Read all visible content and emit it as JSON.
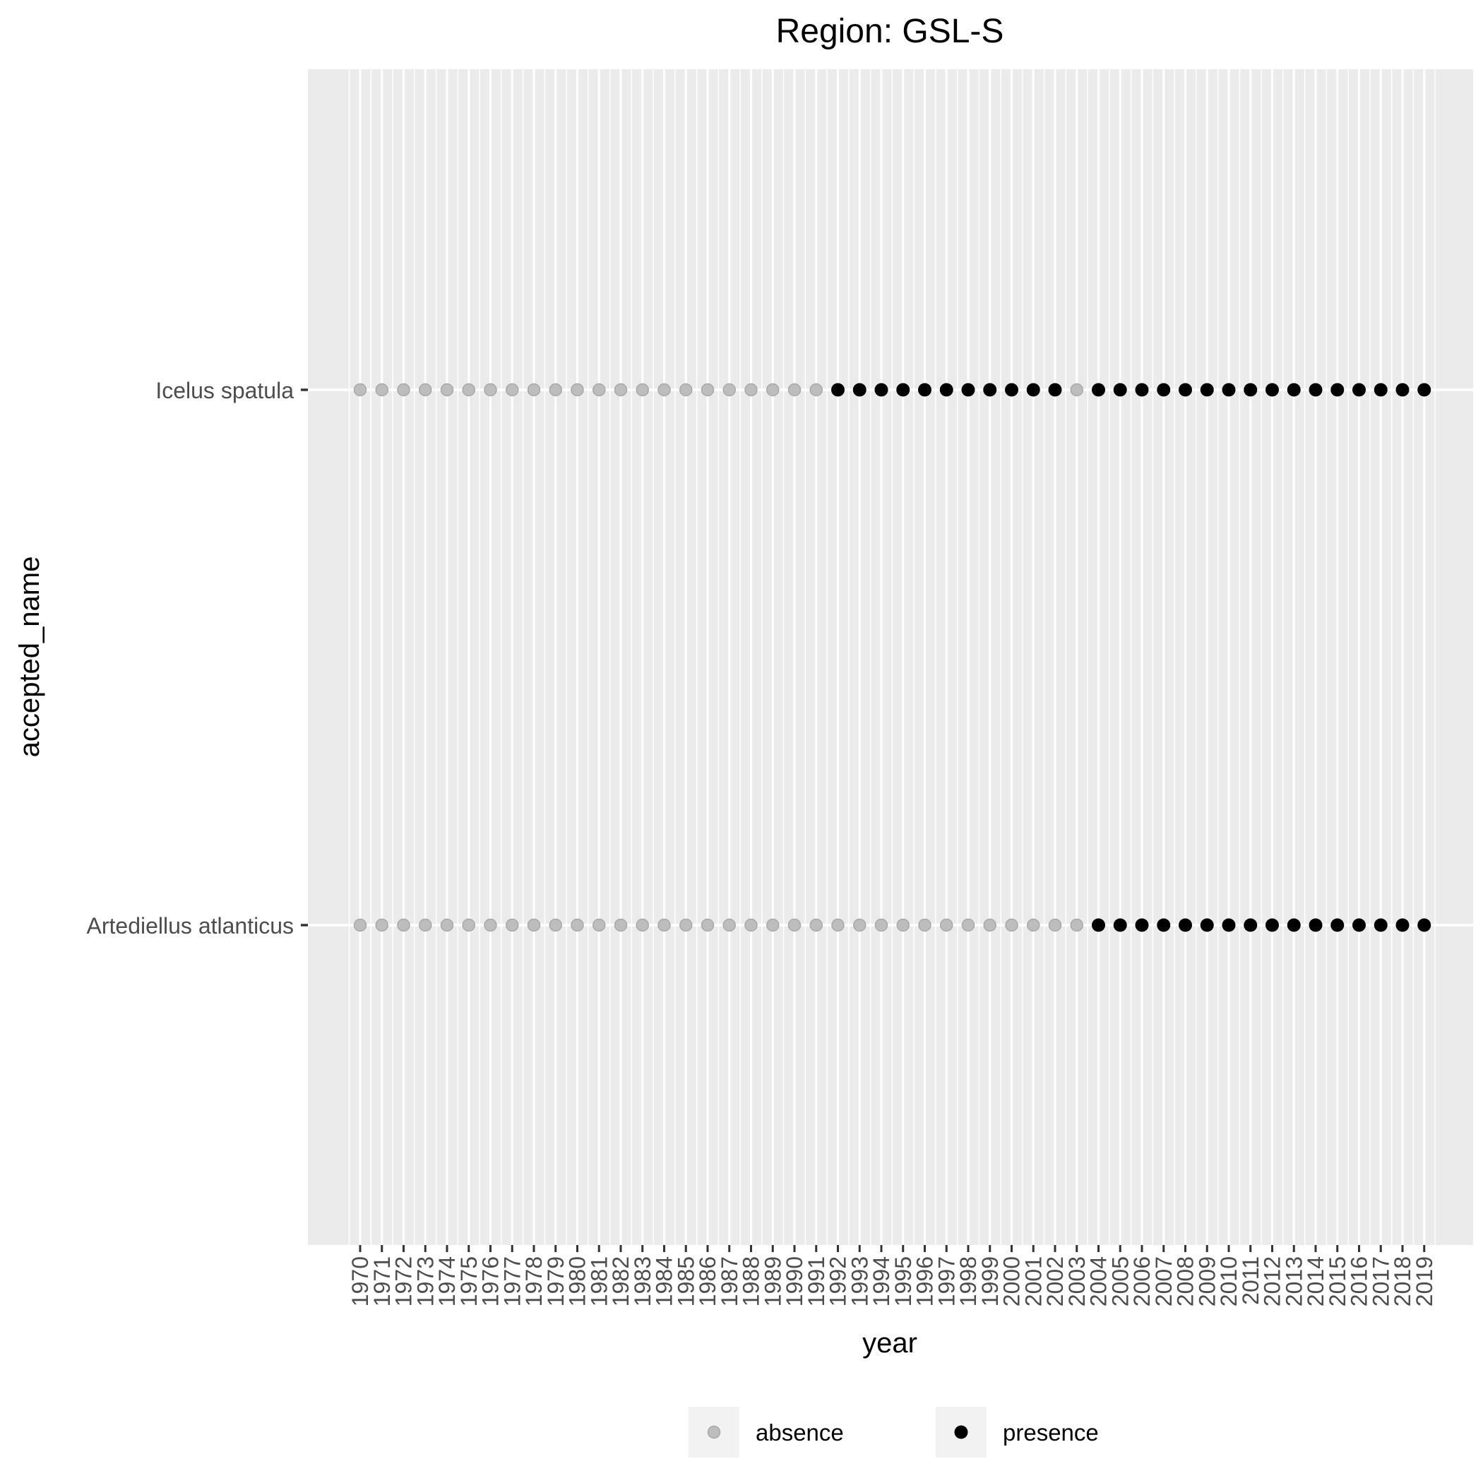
{
  "chart_data": {
    "type": "scatter",
    "title": "Region: GSL-S",
    "xlabel": "year",
    "ylabel": "accepted_name",
    "x": [
      1970,
      1971,
      1972,
      1973,
      1974,
      1975,
      1976,
      1977,
      1978,
      1979,
      1980,
      1981,
      1982,
      1983,
      1984,
      1985,
      1986,
      1987,
      1988,
      1989,
      1990,
      1991,
      1992,
      1993,
      1994,
      1995,
      1996,
      1997,
      1998,
      1999,
      2000,
      2001,
      2002,
      2003,
      2004,
      2005,
      2006,
      2007,
      2008,
      2009,
      2010,
      2011,
      2012,
      2013,
      2014,
      2015,
      2016,
      2017,
      2018,
      2019
    ],
    "categories": [
      "Artediellus atlanticus",
      "Icelus spatula"
    ],
    "grid": true,
    "legend_position": "bottom",
    "legend": [
      {
        "label": "absence",
        "color": "#bdbdbd"
      },
      {
        "label": "presence",
        "color": "#000000"
      }
    ],
    "series": [
      {
        "name": "Icelus spatula",
        "status": [
          "absence",
          "absence",
          "absence",
          "absence",
          "absence",
          "absence",
          "absence",
          "absence",
          "absence",
          "absence",
          "absence",
          "absence",
          "absence",
          "absence",
          "absence",
          "absence",
          "absence",
          "absence",
          "absence",
          "absence",
          "absence",
          "absence",
          "presence",
          "presence",
          "presence",
          "presence",
          "presence",
          "presence",
          "presence",
          "presence",
          "presence",
          "presence",
          "presence",
          "absence",
          "presence",
          "presence",
          "presence",
          "presence",
          "presence",
          "presence",
          "presence",
          "presence",
          "presence",
          "presence",
          "presence",
          "presence",
          "presence",
          "presence",
          "presence",
          "presence"
        ]
      },
      {
        "name": "Artediellus atlanticus",
        "status": [
          "absence",
          "absence",
          "absence",
          "absence",
          "absence",
          "absence",
          "absence",
          "absence",
          "absence",
          "absence",
          "absence",
          "absence",
          "absence",
          "absence",
          "absence",
          "absence",
          "absence",
          "absence",
          "absence",
          "absence",
          "absence",
          "absence",
          "absence",
          "absence",
          "absence",
          "absence",
          "absence",
          "absence",
          "absence",
          "absence",
          "absence",
          "absence",
          "absence",
          "absence",
          "presence",
          "presence",
          "presence",
          "presence",
          "presence",
          "presence",
          "presence",
          "presence",
          "presence",
          "presence",
          "presence",
          "presence",
          "presence",
          "presence",
          "presence",
          "presence"
        ]
      }
    ]
  }
}
